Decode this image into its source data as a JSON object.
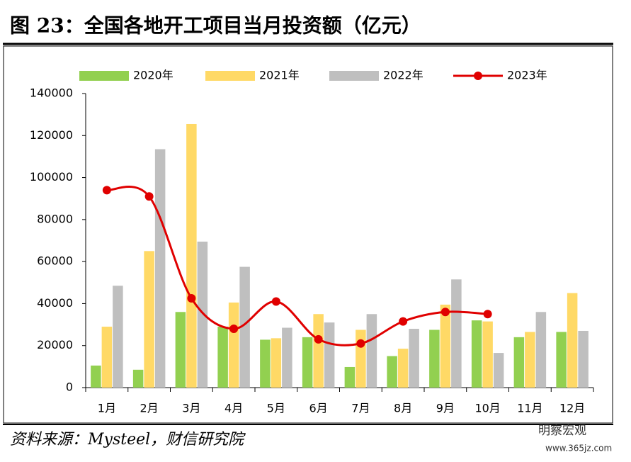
{
  "chart_data": {
    "type": "bar_line",
    "title": "图 23：全国各地开工项目当月投资额（亿元）",
    "source": "资料来源：Mysteel，财信研究院",
    "watermark": "明察宏观",
    "watermark_url": "www.365jz.com",
    "categories": [
      "1月",
      "2月",
      "3月",
      "4月",
      "5月",
      "6月",
      "7月",
      "8月",
      "9月",
      "10月",
      "11月",
      "12月"
    ],
    "series": [
      {
        "name": "2020年",
        "type": "bar",
        "color": "#92d050",
        "values": [
          10500,
          8500,
          36000,
          29000,
          22800,
          24000,
          9800,
          15000,
          27500,
          32000,
          24000,
          26500
        ]
      },
      {
        "name": "2021年",
        "type": "bar",
        "color": "#ffd966",
        "values": [
          29000,
          65000,
          125500,
          40500,
          23500,
          35000,
          27500,
          18500,
          39500,
          31500,
          26500,
          45000
        ]
      },
      {
        "name": "2022年",
        "type": "bar",
        "color": "#bfbfbf",
        "values": [
          48500,
          113500,
          69500,
          57500,
          28500,
          31000,
          35000,
          28000,
          51500,
          16500,
          36000,
          27000
        ]
      },
      {
        "name": "2023年",
        "type": "line",
        "color": "#e00000",
        "values": [
          94000,
          91000,
          42500,
          28000,
          41000,
          23000,
          21000,
          31500,
          36000,
          35000,
          null,
          null
        ]
      }
    ],
    "ylim": [
      0,
      140000
    ],
    "yticks": [
      0,
      20000,
      40000,
      60000,
      80000,
      100000,
      120000,
      140000
    ],
    "legend": "top"
  }
}
